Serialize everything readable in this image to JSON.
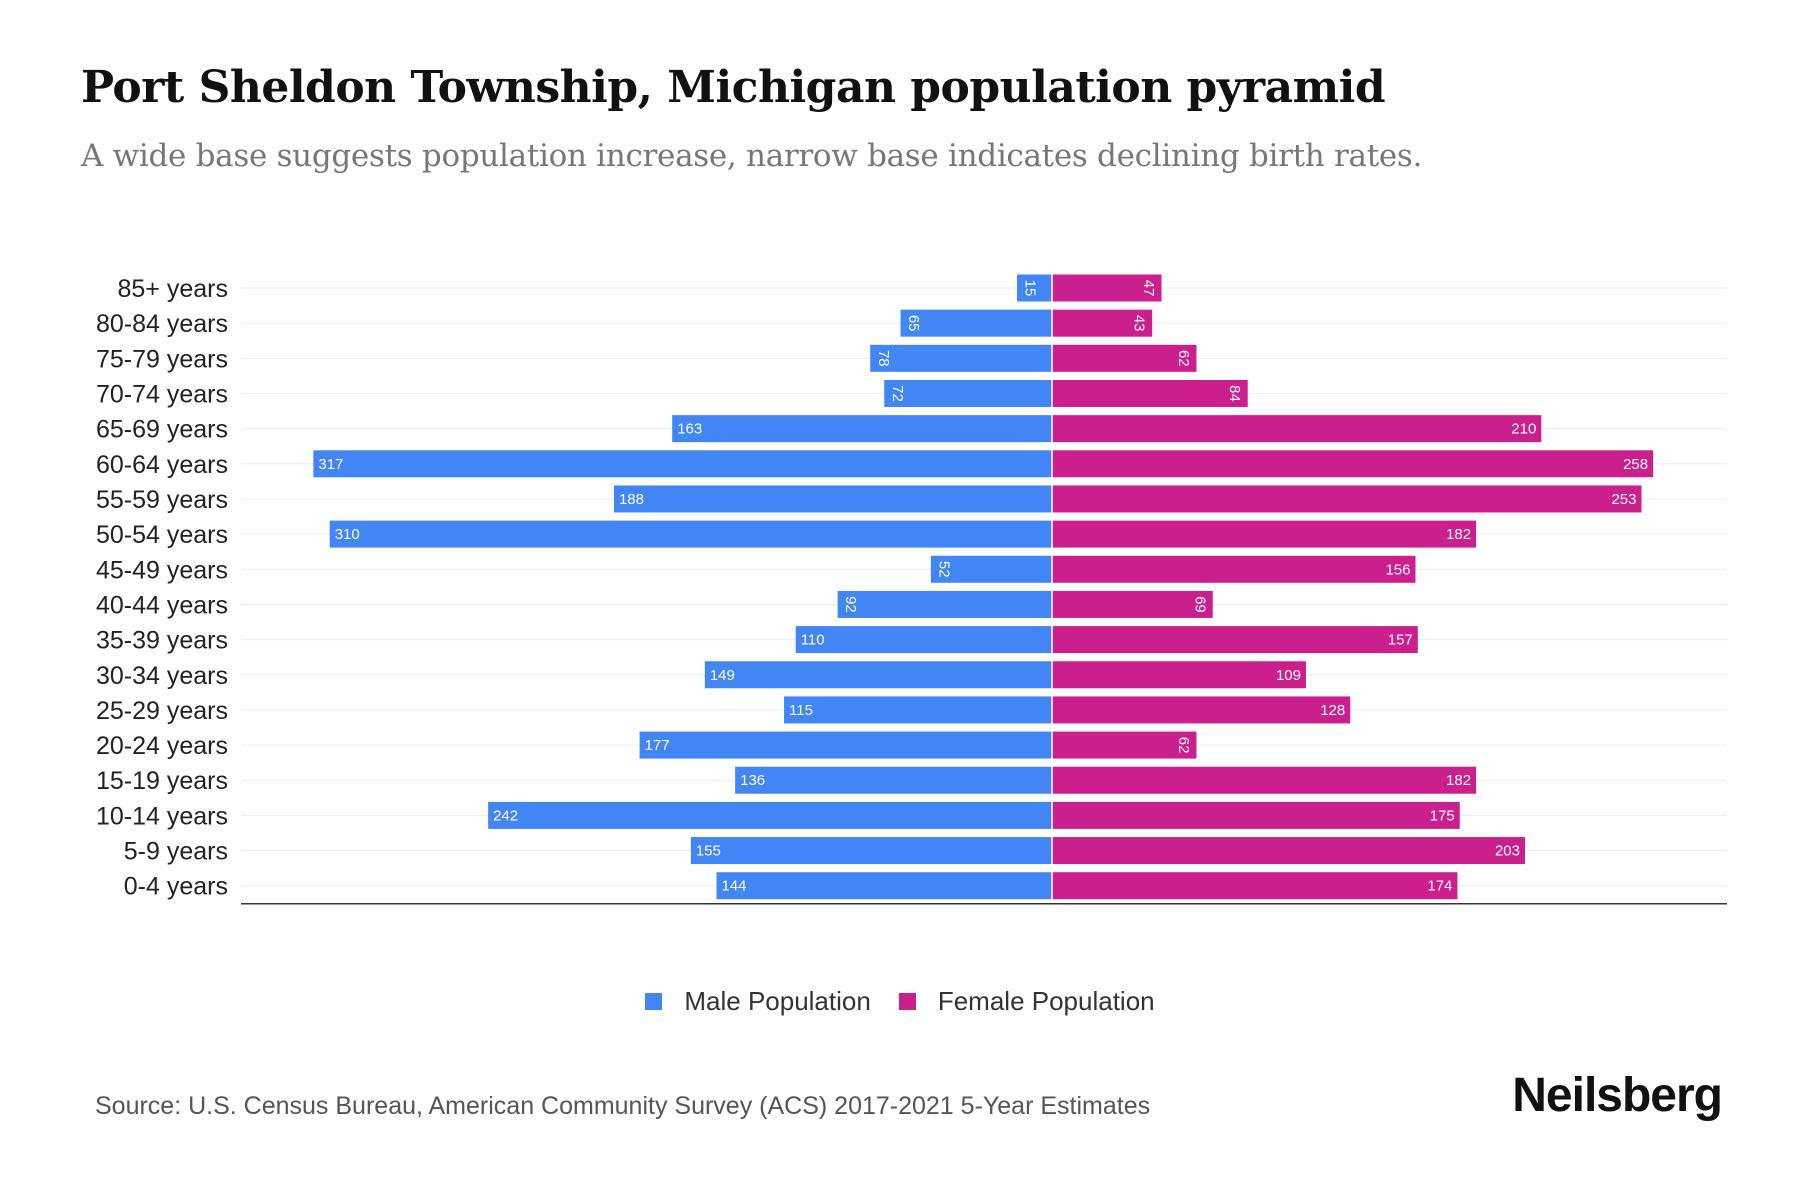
{
  "title": "Port Sheldon Township, Michigan population pyramid",
  "subtitle": "A wide base suggests population increase, narrow base indicates declining birth rates.",
  "source": "Source: U.S. Census Bureau, American Community Survey (ACS) 2017-2021 5-Year Estimates",
  "logo": "Neilsberg",
  "colors": {
    "male": "#4285f4",
    "female": "#cc1f8e"
  },
  "chart_data": {
    "type": "bar",
    "orientation": "horizontal-pyramid",
    "categories": [
      "85+ years",
      "80-84 years",
      "75-79 years",
      "70-74 years",
      "65-69 years",
      "60-64 years",
      "55-59 years",
      "50-54 years",
      "45-49 years",
      "40-44 years",
      "35-39 years",
      "30-34 years",
      "25-29 years",
      "20-24 years",
      "15-19 years",
      "10-14 years",
      "5-9 years",
      "0-4 years"
    ],
    "series": [
      {
        "name": "Male Population",
        "values": [
          15,
          65,
          78,
          72,
          163,
          317,
          188,
          310,
          52,
          92,
          110,
          149,
          115,
          177,
          136,
          242,
          155,
          144
        ]
      },
      {
        "name": "Female Population",
        "values": [
          47,
          43,
          62,
          84,
          210,
          258,
          253,
          182,
          156,
          69,
          157,
          109,
          128,
          62,
          182,
          175,
          203,
          174
        ]
      }
    ],
    "xlim": [
      -320,
      320
    ],
    "legend": "bottom-center",
    "grid": true
  }
}
